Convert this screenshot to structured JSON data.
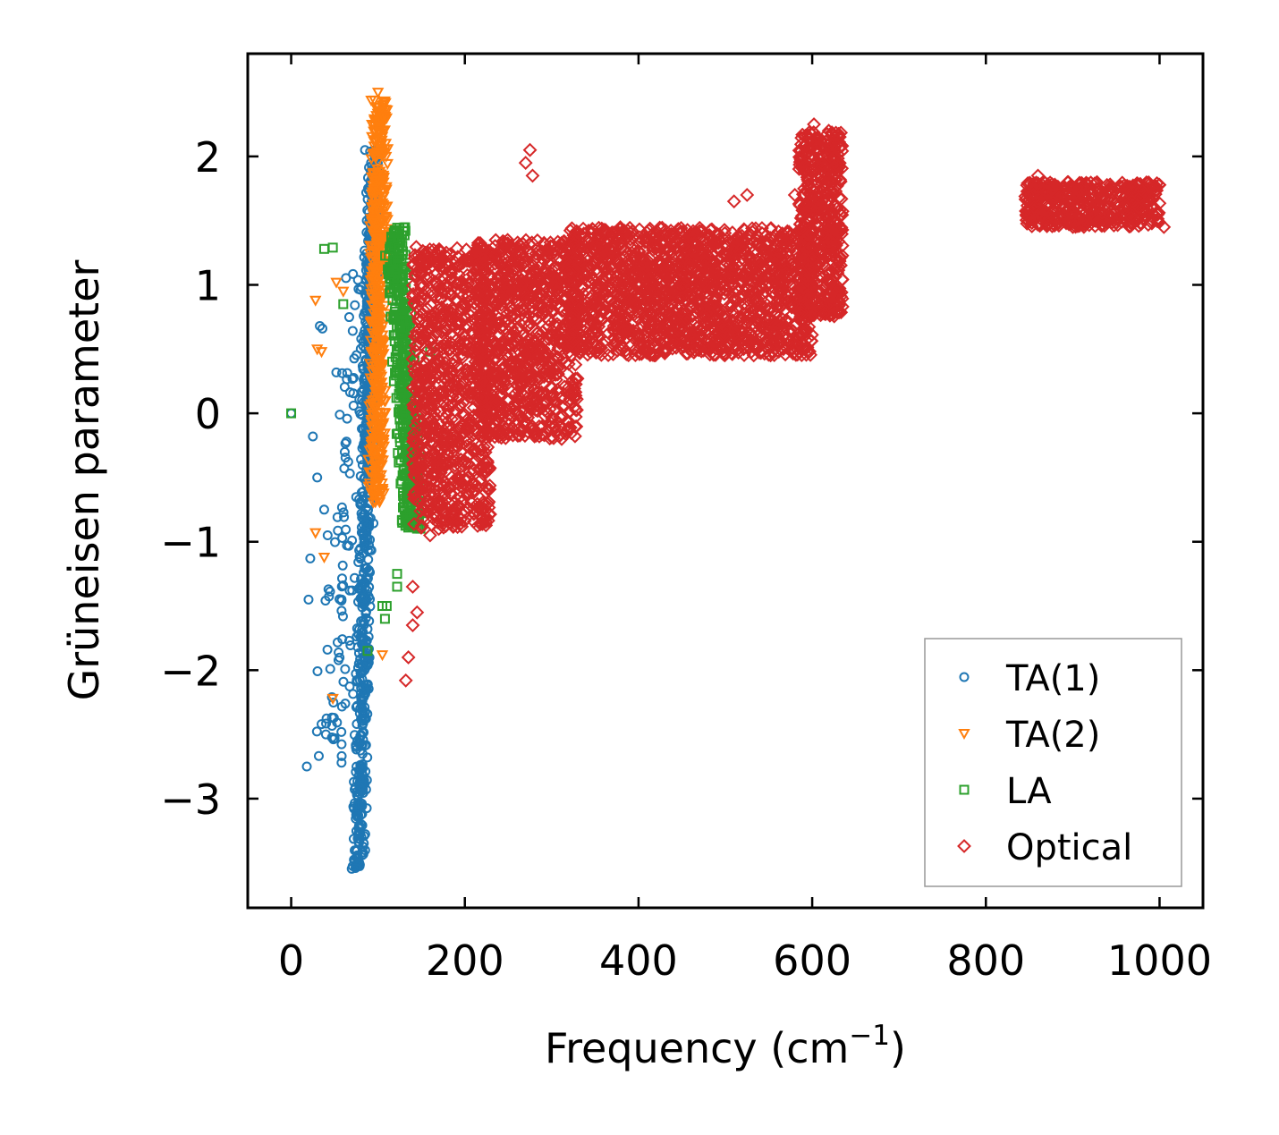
{
  "chart_data": {
    "type": "scatter",
    "title": "",
    "xlabel": "Frequency (cm",
    "xlabel_sup": "−1",
    "xlabel_end": ")",
    "ylabel": "Grüneisen parameter",
    "xlim": [
      -50,
      1050
    ],
    "ylim": [
      -3.85,
      2.8
    ],
    "xticks": [
      0,
      200,
      400,
      600,
      800,
      1000
    ],
    "xtick_labels": [
      "0",
      "200",
      "400",
      "600",
      "800",
      "1000"
    ],
    "yticks": [
      -3,
      -2,
      -1,
      0,
      1,
      2
    ],
    "ytick_labels": [
      "−3",
      "−2",
      "−1",
      "0",
      "1",
      "2"
    ],
    "grid": false,
    "legend_position": "lower-right",
    "series": [
      {
        "name": "TA(1)",
        "marker": "circle",
        "color": "#1f77b4",
        "regions": [
          {
            "x_at_top": 95,
            "x_at_bottom": 78,
            "y_top": 2.05,
            "y_bottom": -3.55,
            "width": 18,
            "count": 700
          },
          {
            "x_at_top": 80,
            "x_at_bottom": 45,
            "y_top": 1.1,
            "y_bottom": -2.7,
            "width": 45,
            "count": 110
          }
        ],
        "points": [
          {
            "x": 0,
            "y": 0.0
          },
          {
            "x": 18,
            "y": -2.75
          },
          {
            "x": 20,
            "y": -1.45
          },
          {
            "x": 22,
            "y": -1.13
          },
          {
            "x": 25,
            "y": -0.18
          },
          {
            "x": 33,
            "y": 0.68
          },
          {
            "x": 36,
            "y": 0.66
          },
          {
            "x": 40,
            "y": -2.5
          },
          {
            "x": 50,
            "y": -2.53
          },
          {
            "x": 58,
            "y": -2.72
          },
          {
            "x": 35,
            "y": -2.42
          },
          {
            "x": 38,
            "y": -0.75
          },
          {
            "x": 42,
            "y": -0.95
          },
          {
            "x": 30,
            "y": -0.5
          },
          {
            "x": 45,
            "y": -1.99
          },
          {
            "x": 85,
            "y": 2.05
          },
          {
            "x": 92,
            "y": 1.95
          }
        ]
      },
      {
        "name": "TA(2)",
        "marker": "triangle-down",
        "color": "#ff7f0e",
        "regions": [
          {
            "x_at_top": 102,
            "x_at_bottom": 98,
            "y_top": 2.45,
            "y_bottom": -0.7,
            "width": 22,
            "count": 550
          }
        ],
        "points": [
          {
            "x": 28,
            "y": 0.88
          },
          {
            "x": 30,
            "y": 0.5
          },
          {
            "x": 35,
            "y": 0.48
          },
          {
            "x": 38,
            "y": -1.12
          },
          {
            "x": 48,
            "y": -2.22
          },
          {
            "x": 52,
            "y": 1.02
          },
          {
            "x": 60,
            "y": 0.95
          },
          {
            "x": 105,
            "y": -1.88
          },
          {
            "x": 110,
            "y": 2.3
          },
          {
            "x": 100,
            "y": 2.5
          },
          {
            "x": 28,
            "y": -0.93
          }
        ]
      },
      {
        "name": "LA",
        "marker": "square",
        "color": "#2ca02c",
        "regions": [
          {
            "x_at_top": 120,
            "x_at_bottom": 140,
            "y_top": 1.45,
            "y_bottom": -0.9,
            "width": 30,
            "count": 450
          }
        ],
        "points": [
          {
            "x": 0,
            "y": 0.0
          },
          {
            "x": 38,
            "y": 1.28
          },
          {
            "x": 48,
            "y": 1.29
          },
          {
            "x": 60,
            "y": 0.85
          },
          {
            "x": 105,
            "y": -1.5
          },
          {
            "x": 108,
            "y": -1.6
          },
          {
            "x": 110,
            "y": -1.5
          },
          {
            "x": 122,
            "y": -1.25
          },
          {
            "x": 122,
            "y": -1.35
          },
          {
            "x": 88,
            "y": -1.85
          },
          {
            "x": 160,
            "y": 0.48
          },
          {
            "x": 155,
            "y": 0.3
          }
        ]
      },
      {
        "name": "Optical",
        "marker": "diamond",
        "color": "#d62728",
        "regions": [
          {
            "x_from": 140,
            "x_to": 230,
            "y_from": -0.9,
            "y_to": 1.3,
            "count": 900
          },
          {
            "x_from": 215,
            "x_to": 330,
            "y_from": -0.2,
            "y_to": 1.35,
            "count": 900
          },
          {
            "x_from": 320,
            "x_to": 600,
            "y_from": 0.45,
            "y_to": 1.45,
            "count": 1700
          },
          {
            "x_from": 585,
            "x_to": 635,
            "y_from": 0.75,
            "y_to": 2.2,
            "count": 500
          },
          {
            "x_from": 845,
            "x_to": 1000,
            "y_from": 1.45,
            "y_to": 1.8,
            "count": 500
          }
        ],
        "points": [
          {
            "x": 132,
            "y": -2.08
          },
          {
            "x": 135,
            "y": -1.9
          },
          {
            "x": 140,
            "y": -1.65
          },
          {
            "x": 145,
            "y": -1.55
          },
          {
            "x": 140,
            "y": -1.35
          },
          {
            "x": 275,
            "y": 2.05
          },
          {
            "x": 270,
            "y": 1.95
          },
          {
            "x": 278,
            "y": 1.85
          },
          {
            "x": 160,
            "y": -0.95
          },
          {
            "x": 170,
            "y": -0.9
          },
          {
            "x": 280,
            "y": -0.15
          },
          {
            "x": 290,
            "y": -0.1
          },
          {
            "x": 510,
            "y": 1.65
          },
          {
            "x": 525,
            "y": 1.7
          },
          {
            "x": 580,
            "y": 1.7
          },
          {
            "x": 602,
            "y": 2.25
          },
          {
            "x": 860,
            "y": 1.85
          },
          {
            "x": 1005,
            "y": 1.45
          }
        ]
      }
    ]
  }
}
